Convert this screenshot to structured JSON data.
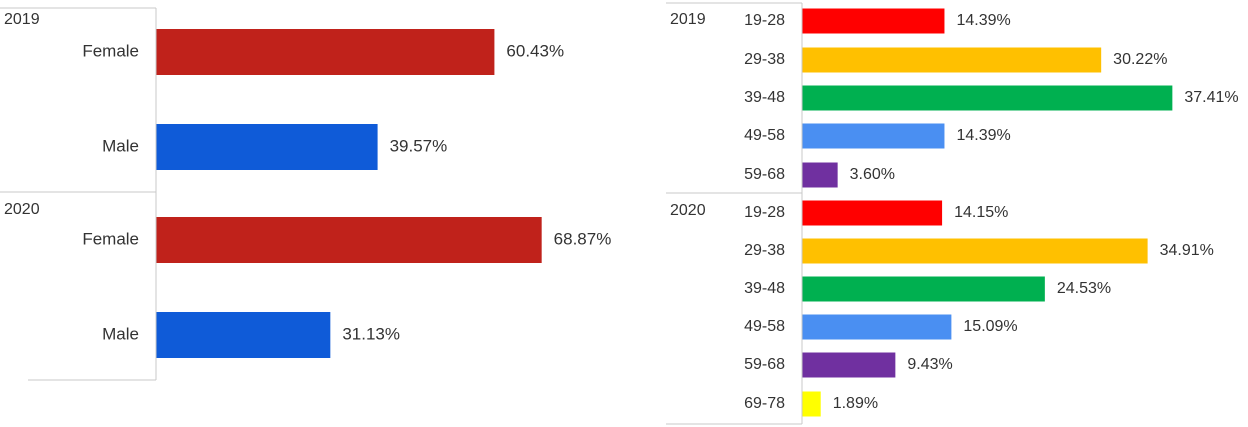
{
  "chart_data": [
    {
      "type": "bar",
      "orientation": "horizontal",
      "groups": [
        {
          "name": "2019",
          "categories": [
            "Female",
            "Male"
          ],
          "values": [
            60.43,
            39.57
          ],
          "labels": [
            "60.43%",
            "39.57%"
          ],
          "colors": [
            "#c0221b",
            "#0f5bd8"
          ]
        },
        {
          "name": "2020",
          "categories": [
            "Female",
            "Male"
          ],
          "values": [
            68.87,
            31.13
          ],
          "labels": [
            "68.87%",
            "31.13%"
          ],
          "colors": [
            "#c0221b",
            "#0f5bd8"
          ]
        }
      ],
      "xlim": [
        0,
        100
      ],
      "grid": false,
      "legend": "none"
    },
    {
      "type": "bar",
      "orientation": "horizontal",
      "groups": [
        {
          "name": "2019",
          "categories": [
            "19-28",
            "29-38",
            "39-48",
            "49-58",
            "59-68"
          ],
          "values": [
            14.39,
            30.22,
            37.41,
            14.39,
            3.6
          ],
          "labels": [
            "14.39%",
            "30.22%",
            "37.41%",
            "14.39%",
            "3.60%"
          ],
          "colors": [
            "#ff0000",
            "#ffc000",
            "#00b050",
            "#4a8ff2",
            "#7030a0"
          ]
        },
        {
          "name": "2020",
          "categories": [
            "19-28",
            "29-38",
            "39-48",
            "49-58",
            "59-68",
            "69-78"
          ],
          "values": [
            14.15,
            34.91,
            24.53,
            15.09,
            9.43,
            1.89
          ],
          "labels": [
            "14.15%",
            "34.91%",
            "24.53%",
            "15.09%",
            "9.43%",
            "1.89%"
          ],
          "colors": [
            "#ff0000",
            "#ffc000",
            "#00b050",
            "#4a8ff2",
            "#7030a0",
            "#ffff00"
          ]
        }
      ],
      "xlim": [
        0,
        40
      ],
      "grid": false,
      "legend": "none"
    }
  ]
}
